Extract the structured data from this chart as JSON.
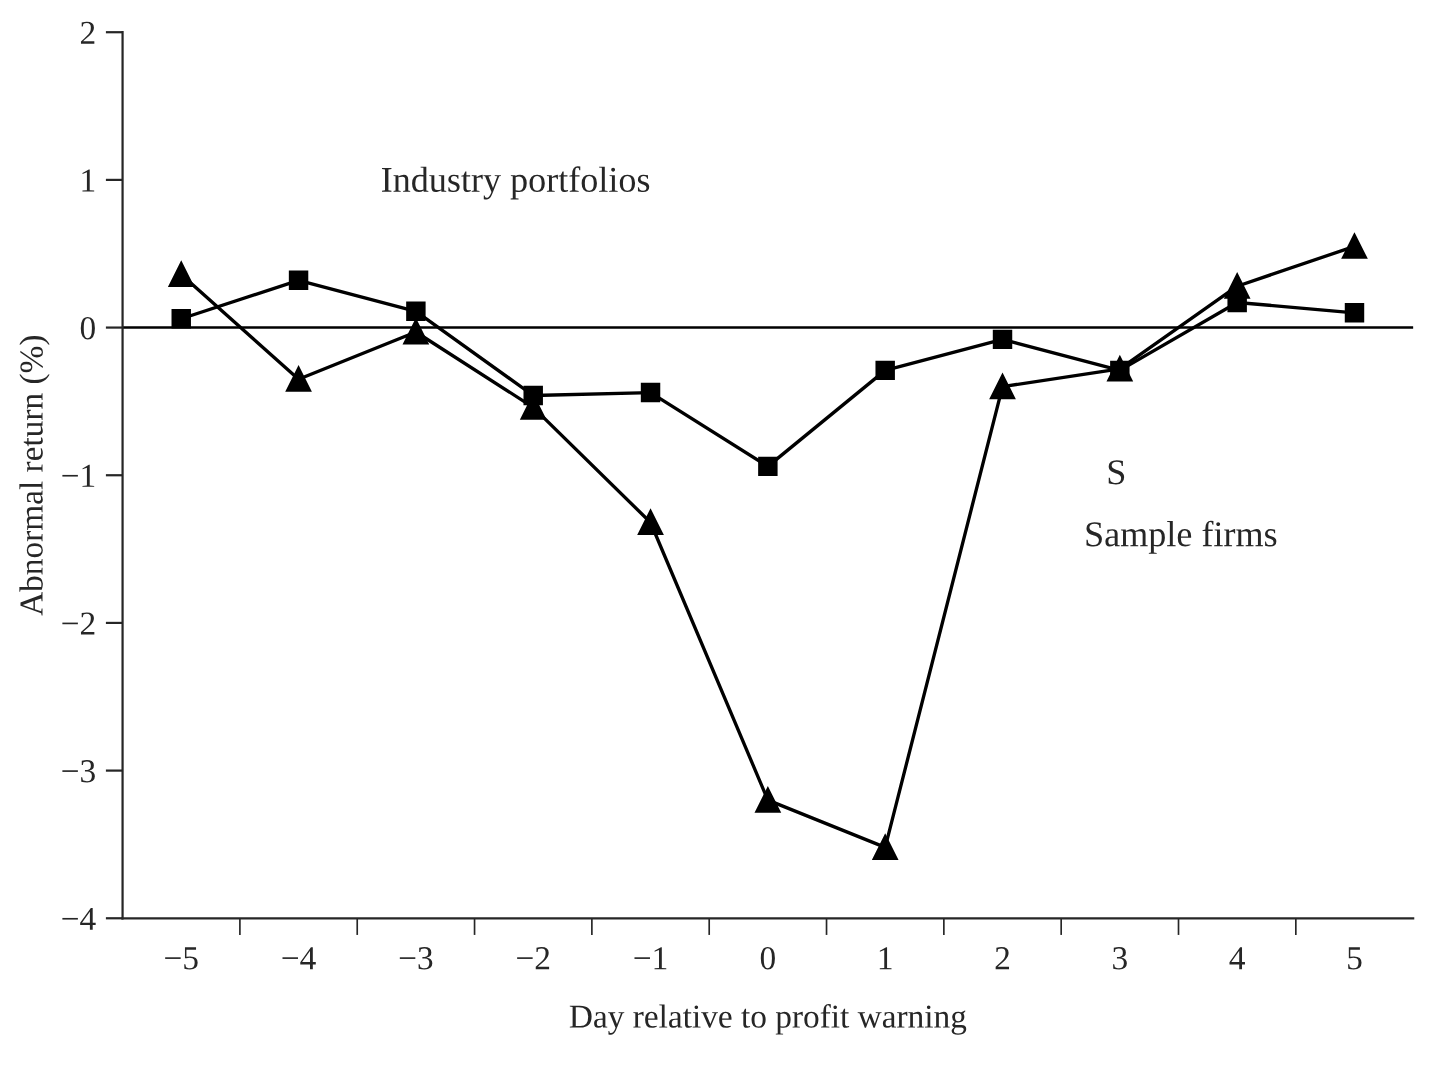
{
  "chart_data": {
    "type": "line",
    "xlabel": "Day relative to profit warning",
    "ylabel": "Abnormal return (%)",
    "categories": [
      "−5",
      "−4",
      "−3",
      "−2",
      "−1",
      "0",
      "1",
      "2",
      "3",
      "4",
      "5"
    ],
    "series": [
      {
        "color": "#000000",
        "marker": "triangle",
        "values": [
          0.36,
          -0.35,
          -0.03,
          -0.54,
          -1.32,
          -3.2,
          -3.52,
          -0.4,
          -0.28,
          0.28,
          0.55
        ]
      },
      {
        "color": "#000000",
        "marker": "square",
        "values": [
          0.06,
          0.32,
          0.11,
          -0.46,
          -0.44,
          -0.94,
          -0.29,
          -0.08,
          -0.29,
          0.17,
          0.1
        ]
      }
    ],
    "ylim": [
      -4,
      2
    ],
    "yticks": [
      {
        "value": -4,
        "label": "−4"
      },
      {
        "value": -3,
        "label": "−3"
      },
      {
        "value": -2,
        "label": "−2"
      },
      {
        "value": -1,
        "label": "−1"
      },
      0,
      1,
      2
    ],
    "ref_lines": [
      {
        "axis": "y",
        "value": 0,
        "color": "#000000"
      }
    ],
    "annotations": [
      "Industry portfolios",
      "S",
      "Sample firms"
    ],
    "grid": false,
    "legend": false,
    "line_style": "solid"
  }
}
